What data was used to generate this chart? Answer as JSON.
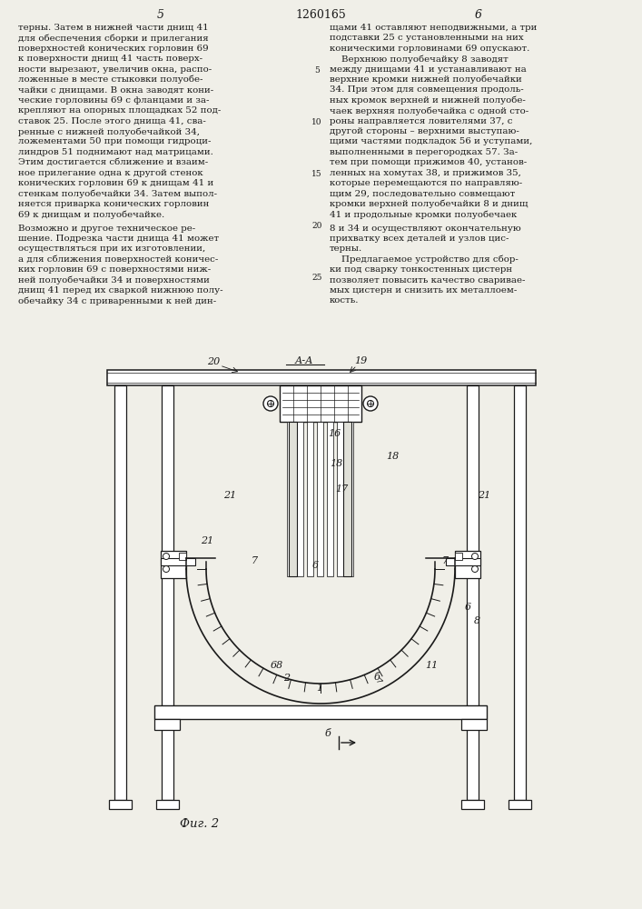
{
  "bg_color": "#f0efe8",
  "line_color": "#1a1a1a",
  "text_color": "#1a1a1a",
  "header_text": "1260165",
  "page_left": "5",
  "page_right": "6",
  "top_text_left": [
    "терны. Затем в нижней части днищ 41",
    "для обеспечения сборки и прилегания",
    "поверхностей конических горловин 69",
    "к поверхности днищ 41 часть поверх-",
    "ности вырезают, увеличив окна, распо-",
    "ложенные в месте стыковки полуобе-",
    "чайки с днищами. В окна заводят кони-",
    "ческие горловины 69 с фланцами и за-",
    "крепляют на опорных площадках 52 под-",
    "ставок 25. После этого днища 41, сва-",
    "ренные с нижней полуобечайкой 34,",
    "ложементами 50 при помощи гидроци-",
    "линдров 51 поднимают над матрицами.",
    "Этим достигается сближение и взаим-",
    "ное прилегание одна к другой стенок",
    "конических горловин 69 к днищам 41 и",
    "стенкам полуобечайки 34. Затем выпол-",
    "няется приварка конических горловин",
    "69 к днищам и полуобечайке."
  ],
  "top_text_right": [
    "щами 41 оставляют неподвижными, а три",
    "подставки 25 с установленными на них",
    "коническими горловинами 69 опускают.",
    "    Верхнюю полуобечайку 8 заводят",
    "между днищами 41 и устанавливают на",
    "верхние кромки нижней полуобечайки",
    "34. При этом для совмещения продоль-",
    "ных кромок верхней и нижней полуобе-",
    "чаек верхняя полуобечайка с одной сто-",
    "роны направляется ловителями 37, с",
    "другой стороны – верхними выступаю-",
    "щими частями подкладок 56 и уступами,",
    "выполненными в перегородках 57. За-",
    "тем при помощи прижимов 40, установ-",
    "ленных на хомутах 38, и прижимов 35,",
    "которые перемещаются по направляю-",
    "щим 29, последовательно совмещают",
    "кромки верхней полуобечайки 8 и днищ",
    "41 и продольные кромки полуобечаек"
  ],
  "mid_text_left": [
    "Возможно и другое техническое ре-",
    "шение. Подрезка части днища 41 может",
    "осуществляться при их изготовлении,",
    "а для сближения поверхностей коничес-",
    "ких горловин 69 с поверхностями ниж-",
    "ней полуобечайки 34 и поверхностями",
    "днищ 41 перед их сваркой нижнюю полу-",
    "обечайку 34 с приваренными к ней дин-"
  ],
  "mid_text_right": [
    "8 и 34 и осуществляют окончательную",
    "прихватку всех деталей и узлов цис-",
    "терны.",
    "    Предлагаемое устройство для сбор-",
    "ки под сварку тонкостенных цистерн",
    "позволяет повысить качество сваривае-",
    "мых цистерн и снизить их металлоем-",
    "кость."
  ],
  "line_numbers": [
    5,
    10,
    15,
    20,
    25
  ],
  "fig_caption": "Фиг. 2"
}
